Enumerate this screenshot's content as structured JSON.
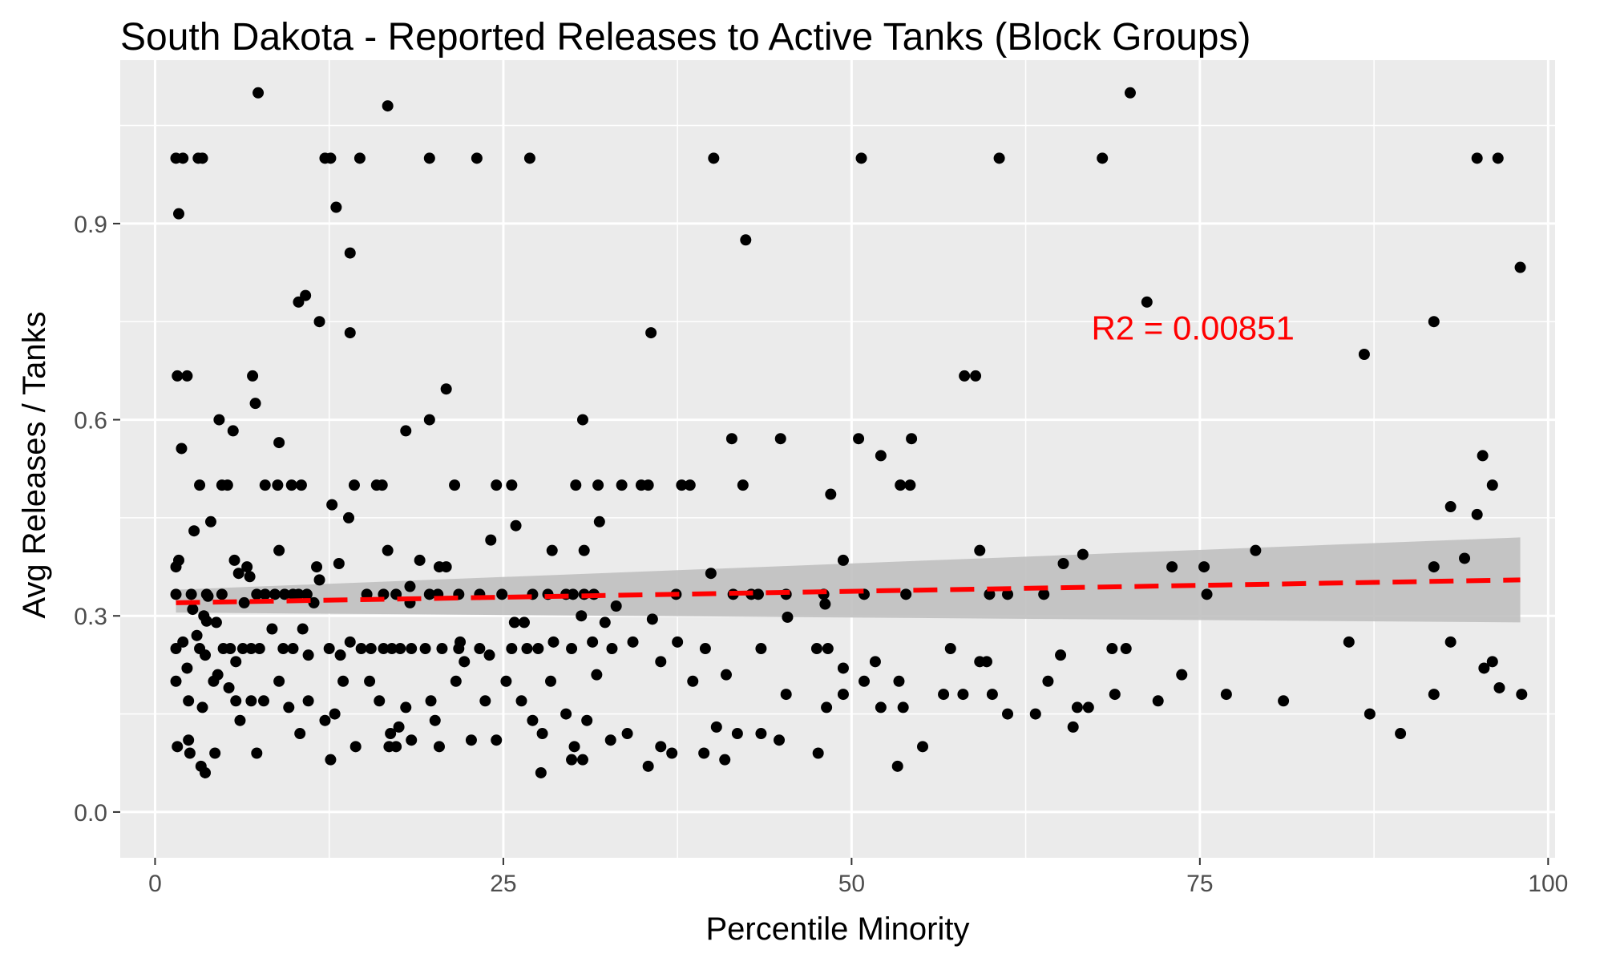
{
  "chart_data": {
    "type": "scatter",
    "title": "South Dakota - Reported Releases to Active Tanks (Block Groups)",
    "xlabel": "Percentile Minority",
    "ylabel": "Avg Releases / Tanks",
    "xlim": [
      -2.5,
      100.5
    ],
    "ylim": [
      -0.07,
      1.15
    ],
    "x_ticks": [
      0,
      25,
      50,
      75,
      100
    ],
    "y_ticks": [
      0.0,
      0.3,
      0.6,
      0.9
    ],
    "x_tick_labels": [
      "0",
      "25",
      "50",
      "75",
      "100"
    ],
    "y_tick_labels": [
      "0.0",
      "0.3",
      "0.6",
      "0.9"
    ],
    "grid": true,
    "legend": "none",
    "annotation": {
      "text": "R2 =  0.00851",
      "x": 74.5,
      "y": 0.74
    },
    "colors": {
      "points": "#000000",
      "fit_line": "#ff0000",
      "confidence_band": "#c0c0c0",
      "panel_background": "#ebebeb",
      "grid": "#ffffff"
    },
    "fit": {
      "kind": "linear",
      "style": "dashed",
      "x": [
        1.5,
        98.0
      ],
      "y": [
        0.32,
        0.355
      ],
      "ci_lower": [
        0.305,
        0.29
      ],
      "ci_upper": [
        0.34,
        0.42
      ]
    },
    "points": [
      [
        1.5,
        1.0
      ],
      [
        2.0,
        1.0
      ],
      [
        1.7,
        0.915
      ],
      [
        3.1,
        1.0
      ],
      [
        3.4,
        1.0
      ],
      [
        7.4,
        1.1
      ],
      [
        12.2,
        1.0
      ],
      [
        12.6,
        1.0
      ],
      [
        14.7,
        1.0
      ],
      [
        16.7,
        1.08
      ],
      [
        19.7,
        1.0
      ],
      [
        23.1,
        1.0
      ],
      [
        26.9,
        1.0
      ],
      [
        40.1,
        1.0
      ],
      [
        50.7,
        1.0
      ],
      [
        60.6,
        1.0
      ],
      [
        68.0,
        1.0
      ],
      [
        70.0,
        1.1
      ],
      [
        94.9,
        1.0
      ],
      [
        96.4,
        1.0
      ],
      [
        13.0,
        0.925
      ],
      [
        14.0,
        0.855
      ],
      [
        42.4,
        0.875
      ],
      [
        98.0,
        0.833
      ],
      [
        10.3,
        0.78
      ],
      [
        10.8,
        0.79
      ],
      [
        11.8,
        0.75
      ],
      [
        14.0,
        0.733
      ],
      [
        35.6,
        0.733
      ],
      [
        71.2,
        0.78
      ],
      [
        86.8,
        0.7
      ],
      [
        91.8,
        0.75
      ],
      [
        1.6,
        0.667
      ],
      [
        2.3,
        0.667
      ],
      [
        7.0,
        0.667
      ],
      [
        7.2,
        0.625
      ],
      [
        58.1,
        0.667
      ],
      [
        58.9,
        0.667
      ],
      [
        20.9,
        0.647
      ],
      [
        1.9,
        0.556
      ],
      [
        4.6,
        0.6
      ],
      [
        5.6,
        0.583
      ],
      [
        8.9,
        0.565
      ],
      [
        18.0,
        0.583
      ],
      [
        19.7,
        0.6
      ],
      [
        30.7,
        0.6
      ],
      [
        41.4,
        0.571
      ],
      [
        44.9,
        0.571
      ],
      [
        50.5,
        0.571
      ],
      [
        52.1,
        0.545
      ],
      [
        54.3,
        0.571
      ],
      [
        95.3,
        0.545
      ],
      [
        3.2,
        0.5
      ],
      [
        4.8,
        0.5
      ],
      [
        5.2,
        0.5
      ],
      [
        7.9,
        0.5
      ],
      [
        8.8,
        0.5
      ],
      [
        9.8,
        0.5
      ],
      [
        10.5,
        0.5
      ],
      [
        14.3,
        0.5
      ],
      [
        15.9,
        0.5
      ],
      [
        16.3,
        0.5
      ],
      [
        21.5,
        0.5
      ],
      [
        24.5,
        0.5
      ],
      [
        25.6,
        0.5
      ],
      [
        30.2,
        0.5
      ],
      [
        31.8,
        0.5
      ],
      [
        33.5,
        0.5
      ],
      [
        34.9,
        0.5
      ],
      [
        35.4,
        0.5
      ],
      [
        37.8,
        0.5
      ],
      [
        38.4,
        0.5
      ],
      [
        42.2,
        0.5
      ],
      [
        53.5,
        0.5
      ],
      [
        54.2,
        0.5
      ],
      [
        96.0,
        0.5
      ],
      [
        12.7,
        0.47
      ],
      [
        13.9,
        0.45
      ],
      [
        4.0,
        0.444
      ],
      [
        2.8,
        0.43
      ],
      [
        24.1,
        0.416
      ],
      [
        25.9,
        0.438
      ],
      [
        31.9,
        0.444
      ],
      [
        48.5,
        0.486
      ],
      [
        93.0,
        0.467
      ],
      [
        94.9,
        0.455
      ],
      [
        8.9,
        0.4
      ],
      [
        16.7,
        0.4
      ],
      [
        28.5,
        0.4
      ],
      [
        30.8,
        0.4
      ],
      [
        59.2,
        0.4
      ],
      [
        66.6,
        0.394
      ],
      [
        79.0,
        0.4
      ],
      [
        94.0,
        0.388
      ],
      [
        1.5,
        0.375
      ],
      [
        1.7,
        0.385
      ],
      [
        5.7,
        0.385
      ],
      [
        6.6,
        0.375
      ],
      [
        6.0,
        0.365
      ],
      [
        6.8,
        0.36
      ],
      [
        11.6,
        0.375
      ],
      [
        13.2,
        0.38
      ],
      [
        19.0,
        0.385
      ],
      [
        20.4,
        0.375
      ],
      [
        20.9,
        0.375
      ],
      [
        39.9,
        0.365
      ],
      [
        49.4,
        0.385
      ],
      [
        65.2,
        0.38
      ],
      [
        73.0,
        0.375
      ],
      [
        75.3,
        0.375
      ],
      [
        91.8,
        0.375
      ],
      [
        1.5,
        0.333
      ],
      [
        2.6,
        0.333
      ],
      [
        3.7,
        0.333
      ],
      [
        4.8,
        0.333
      ],
      [
        7.3,
        0.333
      ],
      [
        7.9,
        0.333
      ],
      [
        8.6,
        0.333
      ],
      [
        9.3,
        0.333
      ],
      [
        9.9,
        0.333
      ],
      [
        10.3,
        0.333
      ],
      [
        10.9,
        0.333
      ],
      [
        11.8,
        0.355
      ],
      [
        15.2,
        0.333
      ],
      [
        16.4,
        0.333
      ],
      [
        17.3,
        0.333
      ],
      [
        18.3,
        0.345
      ],
      [
        19.7,
        0.333
      ],
      [
        20.3,
        0.333
      ],
      [
        21.8,
        0.333
      ],
      [
        23.3,
        0.333
      ],
      [
        24.9,
        0.333
      ],
      [
        27.1,
        0.333
      ],
      [
        28.2,
        0.333
      ],
      [
        29.5,
        0.333
      ],
      [
        30.0,
        0.333
      ],
      [
        30.8,
        0.333
      ],
      [
        31.5,
        0.333
      ],
      [
        37.4,
        0.333
      ],
      [
        41.5,
        0.333
      ],
      [
        42.8,
        0.333
      ],
      [
        43.3,
        0.333
      ],
      [
        45.3,
        0.333
      ],
      [
        48.0,
        0.333
      ],
      [
        50.9,
        0.333
      ],
      [
        53.9,
        0.333
      ],
      [
        59.9,
        0.333
      ],
      [
        61.2,
        0.333
      ],
      [
        63.8,
        0.333
      ],
      [
        75.5,
        0.333
      ],
      [
        2.7,
        0.31
      ],
      [
        3.5,
        0.3
      ],
      [
        3.8,
        0.33
      ],
      [
        6.4,
        0.32
      ],
      [
        11.4,
        0.32
      ],
      [
        18.3,
        0.32
      ],
      [
        30.6,
        0.3
      ],
      [
        33.1,
        0.315
      ],
      [
        35.7,
        0.295
      ],
      [
        45.4,
        0.298
      ],
      [
        48.1,
        0.318
      ],
      [
        4.4,
        0.29
      ],
      [
        3.7,
        0.292
      ],
      [
        1.5,
        0.25
      ],
      [
        2.0,
        0.26
      ],
      [
        2.3,
        0.22
      ],
      [
        3.0,
        0.27
      ],
      [
        3.2,
        0.25
      ],
      [
        3.6,
        0.24
      ],
      [
        4.2,
        0.2
      ],
      [
        4.9,
        0.25
      ],
      [
        5.4,
        0.25
      ],
      [
        5.8,
        0.23
      ],
      [
        6.3,
        0.25
      ],
      [
        6.9,
        0.25
      ],
      [
        7.5,
        0.25
      ],
      [
        8.4,
        0.28
      ],
      [
        9.2,
        0.25
      ],
      [
        9.9,
        0.25
      ],
      [
        10.6,
        0.28
      ],
      [
        11.0,
        0.24
      ],
      [
        12.5,
        0.25
      ],
      [
        13.3,
        0.24
      ],
      [
        14.0,
        0.26
      ],
      [
        14.8,
        0.25
      ],
      [
        15.5,
        0.25
      ],
      [
        16.4,
        0.25
      ],
      [
        17.0,
        0.25
      ],
      [
        17.6,
        0.25
      ],
      [
        18.4,
        0.25
      ],
      [
        19.4,
        0.25
      ],
      [
        20.6,
        0.25
      ],
      [
        21.9,
        0.26
      ],
      [
        23.3,
        0.25
      ],
      [
        24.0,
        0.24
      ],
      [
        25.6,
        0.25
      ],
      [
        26.7,
        0.25
      ],
      [
        27.5,
        0.25
      ],
      [
        28.6,
        0.26
      ],
      [
        29.9,
        0.25
      ],
      [
        31.4,
        0.26
      ],
      [
        32.8,
        0.25
      ],
      [
        34.3,
        0.26
      ],
      [
        36.3,
        0.23
      ],
      [
        37.5,
        0.26
      ],
      [
        39.5,
        0.25
      ],
      [
        41.0,
        0.21
      ],
      [
        43.5,
        0.25
      ],
      [
        47.5,
        0.25
      ],
      [
        48.3,
        0.25
      ],
      [
        49.4,
        0.22
      ],
      [
        51.7,
        0.23
      ],
      [
        53.4,
        0.2
      ],
      [
        57.1,
        0.25
      ],
      [
        59.2,
        0.23
      ],
      [
        59.7,
        0.23
      ],
      [
        65.0,
        0.24
      ],
      [
        68.7,
        0.25
      ],
      [
        69.7,
        0.25
      ],
      [
        73.7,
        0.21
      ],
      [
        85.7,
        0.26
      ],
      [
        93.0,
        0.26
      ],
      [
        95.4,
        0.22
      ],
      [
        96.0,
        0.23
      ],
      [
        1.5,
        0.2
      ],
      [
        2.4,
        0.17
      ],
      [
        3.4,
        0.16
      ],
      [
        4.5,
        0.21
      ],
      [
        5.3,
        0.19
      ],
      [
        5.8,
        0.17
      ],
      [
        6.1,
        0.14
      ],
      [
        6.9,
        0.17
      ],
      [
        7.8,
        0.17
      ],
      [
        8.9,
        0.2
      ],
      [
        9.6,
        0.16
      ],
      [
        10.4,
        0.12
      ],
      [
        11.0,
        0.17
      ],
      [
        12.2,
        0.14
      ],
      [
        12.9,
        0.15
      ],
      [
        13.5,
        0.2
      ],
      [
        14.4,
        0.1
      ],
      [
        15.4,
        0.2
      ],
      [
        16.1,
        0.17
      ],
      [
        16.9,
        0.12
      ],
      [
        17.5,
        0.13
      ],
      [
        18.0,
        0.16
      ],
      [
        18.4,
        0.11
      ],
      [
        19.8,
        0.17
      ],
      [
        20.4,
        0.1
      ],
      [
        21.6,
        0.2
      ],
      [
        22.7,
        0.11
      ],
      [
        23.7,
        0.17
      ],
      [
        24.5,
        0.11
      ],
      [
        25.2,
        0.2
      ],
      [
        26.3,
        0.17
      ],
      [
        27.1,
        0.14
      ],
      [
        27.8,
        0.12
      ],
      [
        28.4,
        0.2
      ],
      [
        29.5,
        0.15
      ],
      [
        30.1,
        0.1
      ],
      [
        31.0,
        0.14
      ],
      [
        31.7,
        0.21
      ],
      [
        32.7,
        0.11
      ],
      [
        33.9,
        0.12
      ],
      [
        35.4,
        0.07
      ],
      [
        36.3,
        0.1
      ],
      [
        37.1,
        0.09
      ],
      [
        38.6,
        0.2
      ],
      [
        39.4,
        0.09
      ],
      [
        40.3,
        0.13
      ],
      [
        40.9,
        0.08
      ],
      [
        41.8,
        0.12
      ],
      [
        43.5,
        0.12
      ],
      [
        44.8,
        0.11
      ],
      [
        45.3,
        0.18
      ],
      [
        47.6,
        0.09
      ],
      [
        48.2,
        0.16
      ],
      [
        49.4,
        0.18
      ],
      [
        50.9,
        0.2
      ],
      [
        52.1,
        0.16
      ],
      [
        53.3,
        0.07
      ],
      [
        53.7,
        0.16
      ],
      [
        55.1,
        0.1
      ],
      [
        56.6,
        0.18
      ],
      [
        58.0,
        0.18
      ],
      [
        60.1,
        0.18
      ],
      [
        61.2,
        0.15
      ],
      [
        63.2,
        0.15
      ],
      [
        64.1,
        0.2
      ],
      [
        65.9,
        0.13
      ],
      [
        66.2,
        0.16
      ],
      [
        67.0,
        0.16
      ],
      [
        68.9,
        0.18
      ],
      [
        72.0,
        0.17
      ],
      [
        76.9,
        0.18
      ],
      [
        81.0,
        0.17
      ],
      [
        87.2,
        0.15
      ],
      [
        89.4,
        0.12
      ],
      [
        91.8,
        0.18
      ],
      [
        96.5,
        0.19
      ],
      [
        98.1,
        0.18
      ],
      [
        1.6,
        0.1
      ],
      [
        2.4,
        0.11
      ],
      [
        2.5,
        0.09
      ],
      [
        3.3,
        0.07
      ],
      [
        3.6,
        0.06
      ],
      [
        4.3,
        0.09
      ],
      [
        7.3,
        0.09
      ],
      [
        12.6,
        0.08
      ],
      [
        16.8,
        0.1
      ],
      [
        17.3,
        0.1
      ],
      [
        27.7,
        0.06
      ],
      [
        29.9,
        0.08
      ],
      [
        30.7,
        0.08
      ],
      [
        20.1,
        0.14
      ],
      [
        22.2,
        0.23
      ],
      [
        21.8,
        0.25
      ],
      [
        25.8,
        0.29
      ],
      [
        26.5,
        0.29
      ],
      [
        32.3,
        0.29
      ]
    ]
  }
}
